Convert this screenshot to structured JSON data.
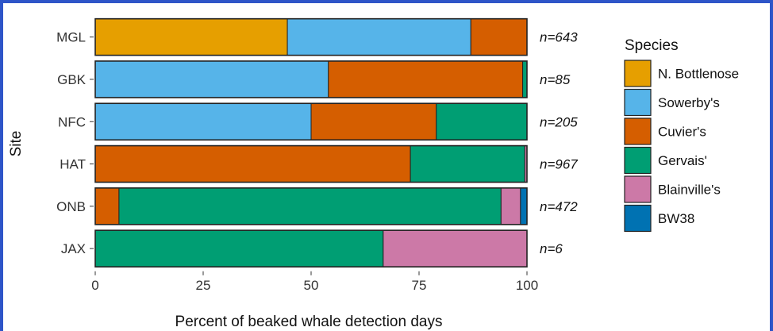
{
  "chart_data": {
    "type": "bar",
    "orientation": "horizontal",
    "stacked": true,
    "xlabel": "Percent of beaked whale detection days",
    "ylabel": "Site",
    "xlim": [
      0,
      100
    ],
    "x_ticks": [
      "0",
      "25",
      "50",
      "75",
      "100"
    ],
    "categories": [
      "MGL",
      "GBK",
      "NFC",
      "HAT",
      "ONB",
      "JAX"
    ],
    "sample_sizes": [
      "n=643",
      "n=85",
      "n=205",
      "n=967",
      "n=472",
      "n=6"
    ],
    "legend_title": "Species",
    "legend_position": "right",
    "series": [
      {
        "name": "N. Bottlenose",
        "color": "#e69f00",
        "values": [
          44.5,
          0,
          0,
          0,
          0,
          0
        ]
      },
      {
        "name": "Sowerby's",
        "color": "#56b4e9",
        "values": [
          42.5,
          54,
          50,
          0,
          0,
          0
        ]
      },
      {
        "name": "Cuvier's",
        "color": "#d55e00",
        "values": [
          13,
          45,
          29,
          73,
          5.5,
          0
        ]
      },
      {
        "name": "Gervais'",
        "color": "#009e73",
        "values": [
          0,
          1,
          21,
          26.5,
          88.5,
          66.7
        ]
      },
      {
        "name": "Blainville's",
        "color": "#cc79a7",
        "values": [
          0,
          0,
          0,
          0.5,
          4.5,
          33.3
        ]
      },
      {
        "name": "BW38",
        "color": "#0072b2",
        "values": [
          0,
          0,
          0,
          0,
          1.5,
          0
        ]
      }
    ]
  }
}
